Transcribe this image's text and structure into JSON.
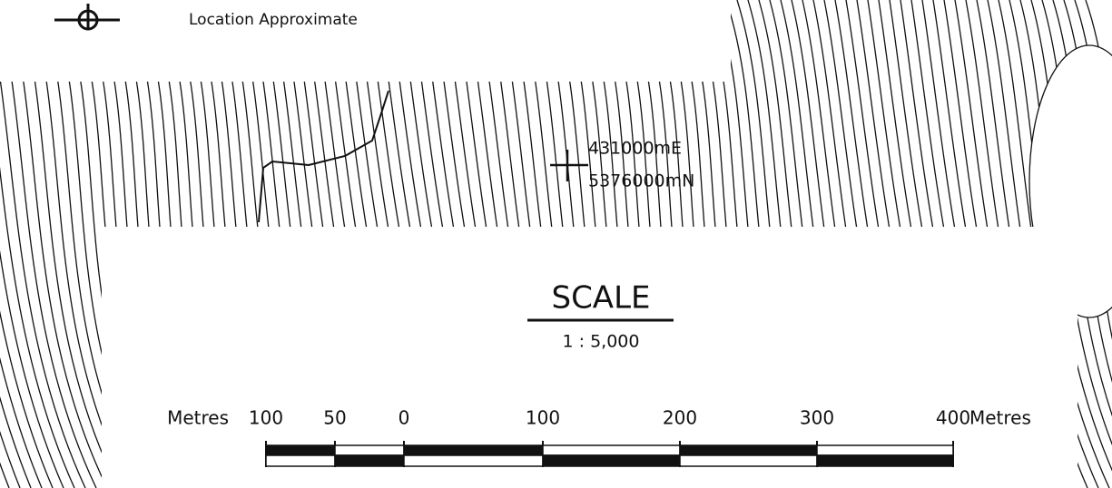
{
  "legend": {
    "label": "Location Approximate"
  },
  "grid_point": {
    "easting": "431000mE",
    "northing": "5376000mN"
  },
  "scale": {
    "title": "SCALE",
    "ratio": "1 : 5,000",
    "unit_left": "Metres",
    "ticks": [
      "100",
      "50",
      "0",
      "100",
      "200",
      "300",
      "400"
    ],
    "unit_right": "Metres"
  }
}
